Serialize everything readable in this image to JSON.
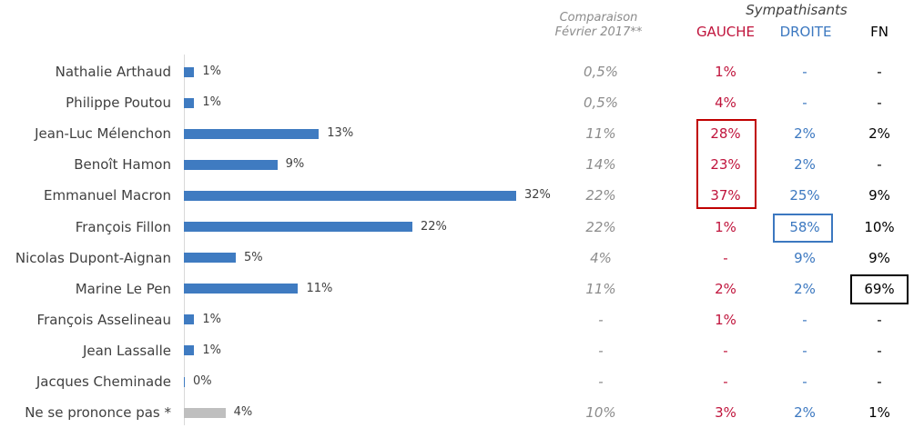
{
  "header": {
    "comparison_line1": "Comparaison",
    "comparison_line2": "Février 2017**",
    "sympathisants": "Sympathisants",
    "gauche": "GAUCHE",
    "droite": "DROITE",
    "fn": "FN"
  },
  "colors": {
    "bar": "#3f7bc1",
    "bar_undecided": "#bfbfbf",
    "gauche": "#c0143c",
    "droite": "#3c78c0",
    "fn": "#000000",
    "highlight_gauche": "#c00000",
    "highlight_droite": "#3c78c0",
    "highlight_fn": "#000000"
  },
  "chart_data": {
    "type": "bar",
    "orientation": "horizontal",
    "categories": [
      "Nathalie Arthaud",
      "Philippe Poutou",
      "Jean-Luc Mélenchon",
      "Benoît Hamon",
      "Emmanuel Macron",
      "François Fillon",
      "Nicolas Dupont-Aignan",
      "Marine Le Pen",
      "François Asselineau",
      "Jean Lassalle",
      "Jacques Cheminade",
      "Ne se prononce pas *"
    ],
    "values": [
      1,
      1,
      13,
      9,
      32,
      22,
      5,
      11,
      1,
      1,
      0,
      4
    ],
    "value_labels": [
      "1%",
      "1%",
      "13%",
      "9%",
      "32%",
      "22%",
      "5%",
      "11%",
      "1%",
      "1%",
      "0%",
      "4%"
    ],
    "xlim": [
      0,
      32
    ],
    "grid": false,
    "legend": "none"
  },
  "table": {
    "comparaison": [
      "0,5%",
      "0,5%",
      "11%",
      "14%",
      "22%",
      "22%",
      "4%",
      "11%",
      "-",
      "-",
      "-",
      "10%"
    ],
    "gauche": [
      "1%",
      "4%",
      "28%",
      "23%",
      "37%",
      "1%",
      "-",
      "2%",
      "1%",
      "-",
      "-",
      "3%"
    ],
    "droite": [
      "-",
      "-",
      "2%",
      "2%",
      "25%",
      "58%",
      "9%",
      "2%",
      "-",
      "-",
      "-",
      "2%"
    ],
    "fn": [
      "-",
      "-",
      "2%",
      "-",
      "9%",
      "10%",
      "9%",
      "69%",
      "-",
      "-",
      "-",
      "1%"
    ]
  }
}
